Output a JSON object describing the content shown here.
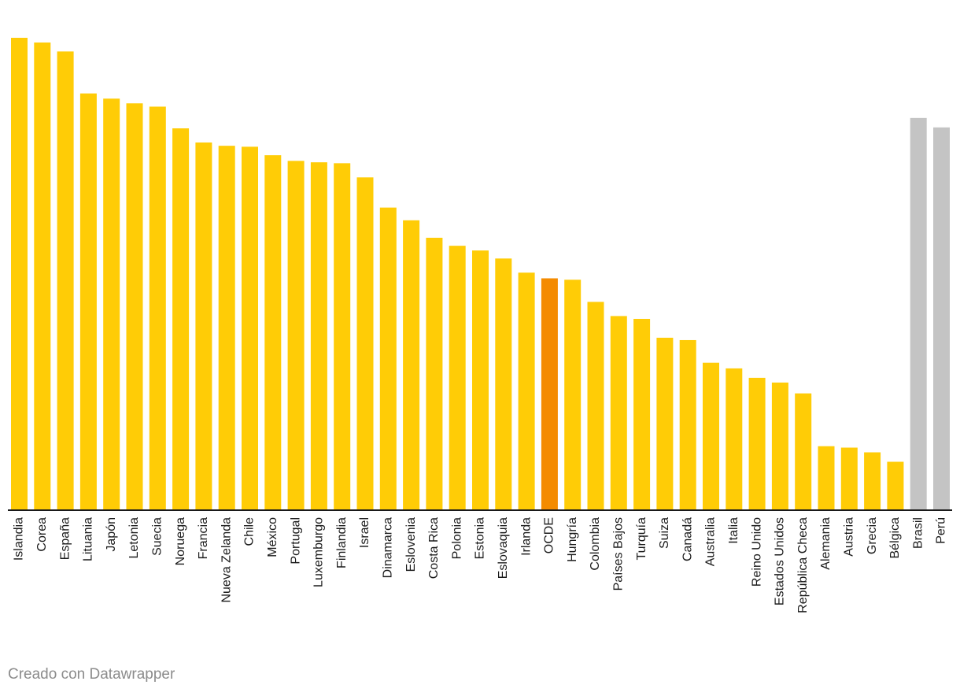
{
  "chart_data": {
    "type": "bar",
    "title": "",
    "xlabel": "",
    "ylabel": "",
    "ylim": [
      0,
      100
    ],
    "grid": false,
    "categories": [
      "Islandia",
      "Corea",
      "España",
      "Lituania",
      "Japón",
      "Letonia",
      "Suecia",
      "Noruega",
      "Francia",
      "Nueva Zelanda",
      "Chile",
      "México",
      "Portugal",
      "Luxemburgo",
      "Finlandia",
      "Israel",
      "Dinamarca",
      "Eslovenia",
      "Costa Rica",
      "Polonia",
      "Estonia",
      "Eslovaquia",
      "Irlanda",
      "OCDE",
      "Hungría",
      "Colombia",
      "Países Bajos",
      "Turquía",
      "Suiza",
      "Canadá",
      "Australia",
      "Italia",
      "Reino Unido",
      "Estados Unidos",
      "República Checa",
      "Alemania",
      "Austria",
      "Grecia",
      "Bélgica",
      "Brasil",
      "Perú"
    ],
    "values": [
      100,
      99,
      97.1,
      88.2,
      87.1,
      86.1,
      85.4,
      80.8,
      77.8,
      77.1,
      76.9,
      75.1,
      73.9,
      73.6,
      73.4,
      70.4,
      64.0,
      61.3,
      57.6,
      55.9,
      54.9,
      53.2,
      50.2,
      49.0,
      48.7,
      44.0,
      41.0,
      40.4,
      36.4,
      35.9,
      31.1,
      29.9,
      27.9,
      26.9,
      24.6,
      13.4,
      13.1,
      12.1,
      10.1,
      83.0,
      81.0
    ],
    "colors": {
      "default": "#ffcc06",
      "highlight": "#f48b00",
      "muted": "#c4c4c4"
    },
    "highlighted": [
      "OCDE"
    ],
    "muted": [
      "Brasil",
      "Perú"
    ]
  },
  "footer": {
    "credit": "Creado con Datawrapper"
  }
}
